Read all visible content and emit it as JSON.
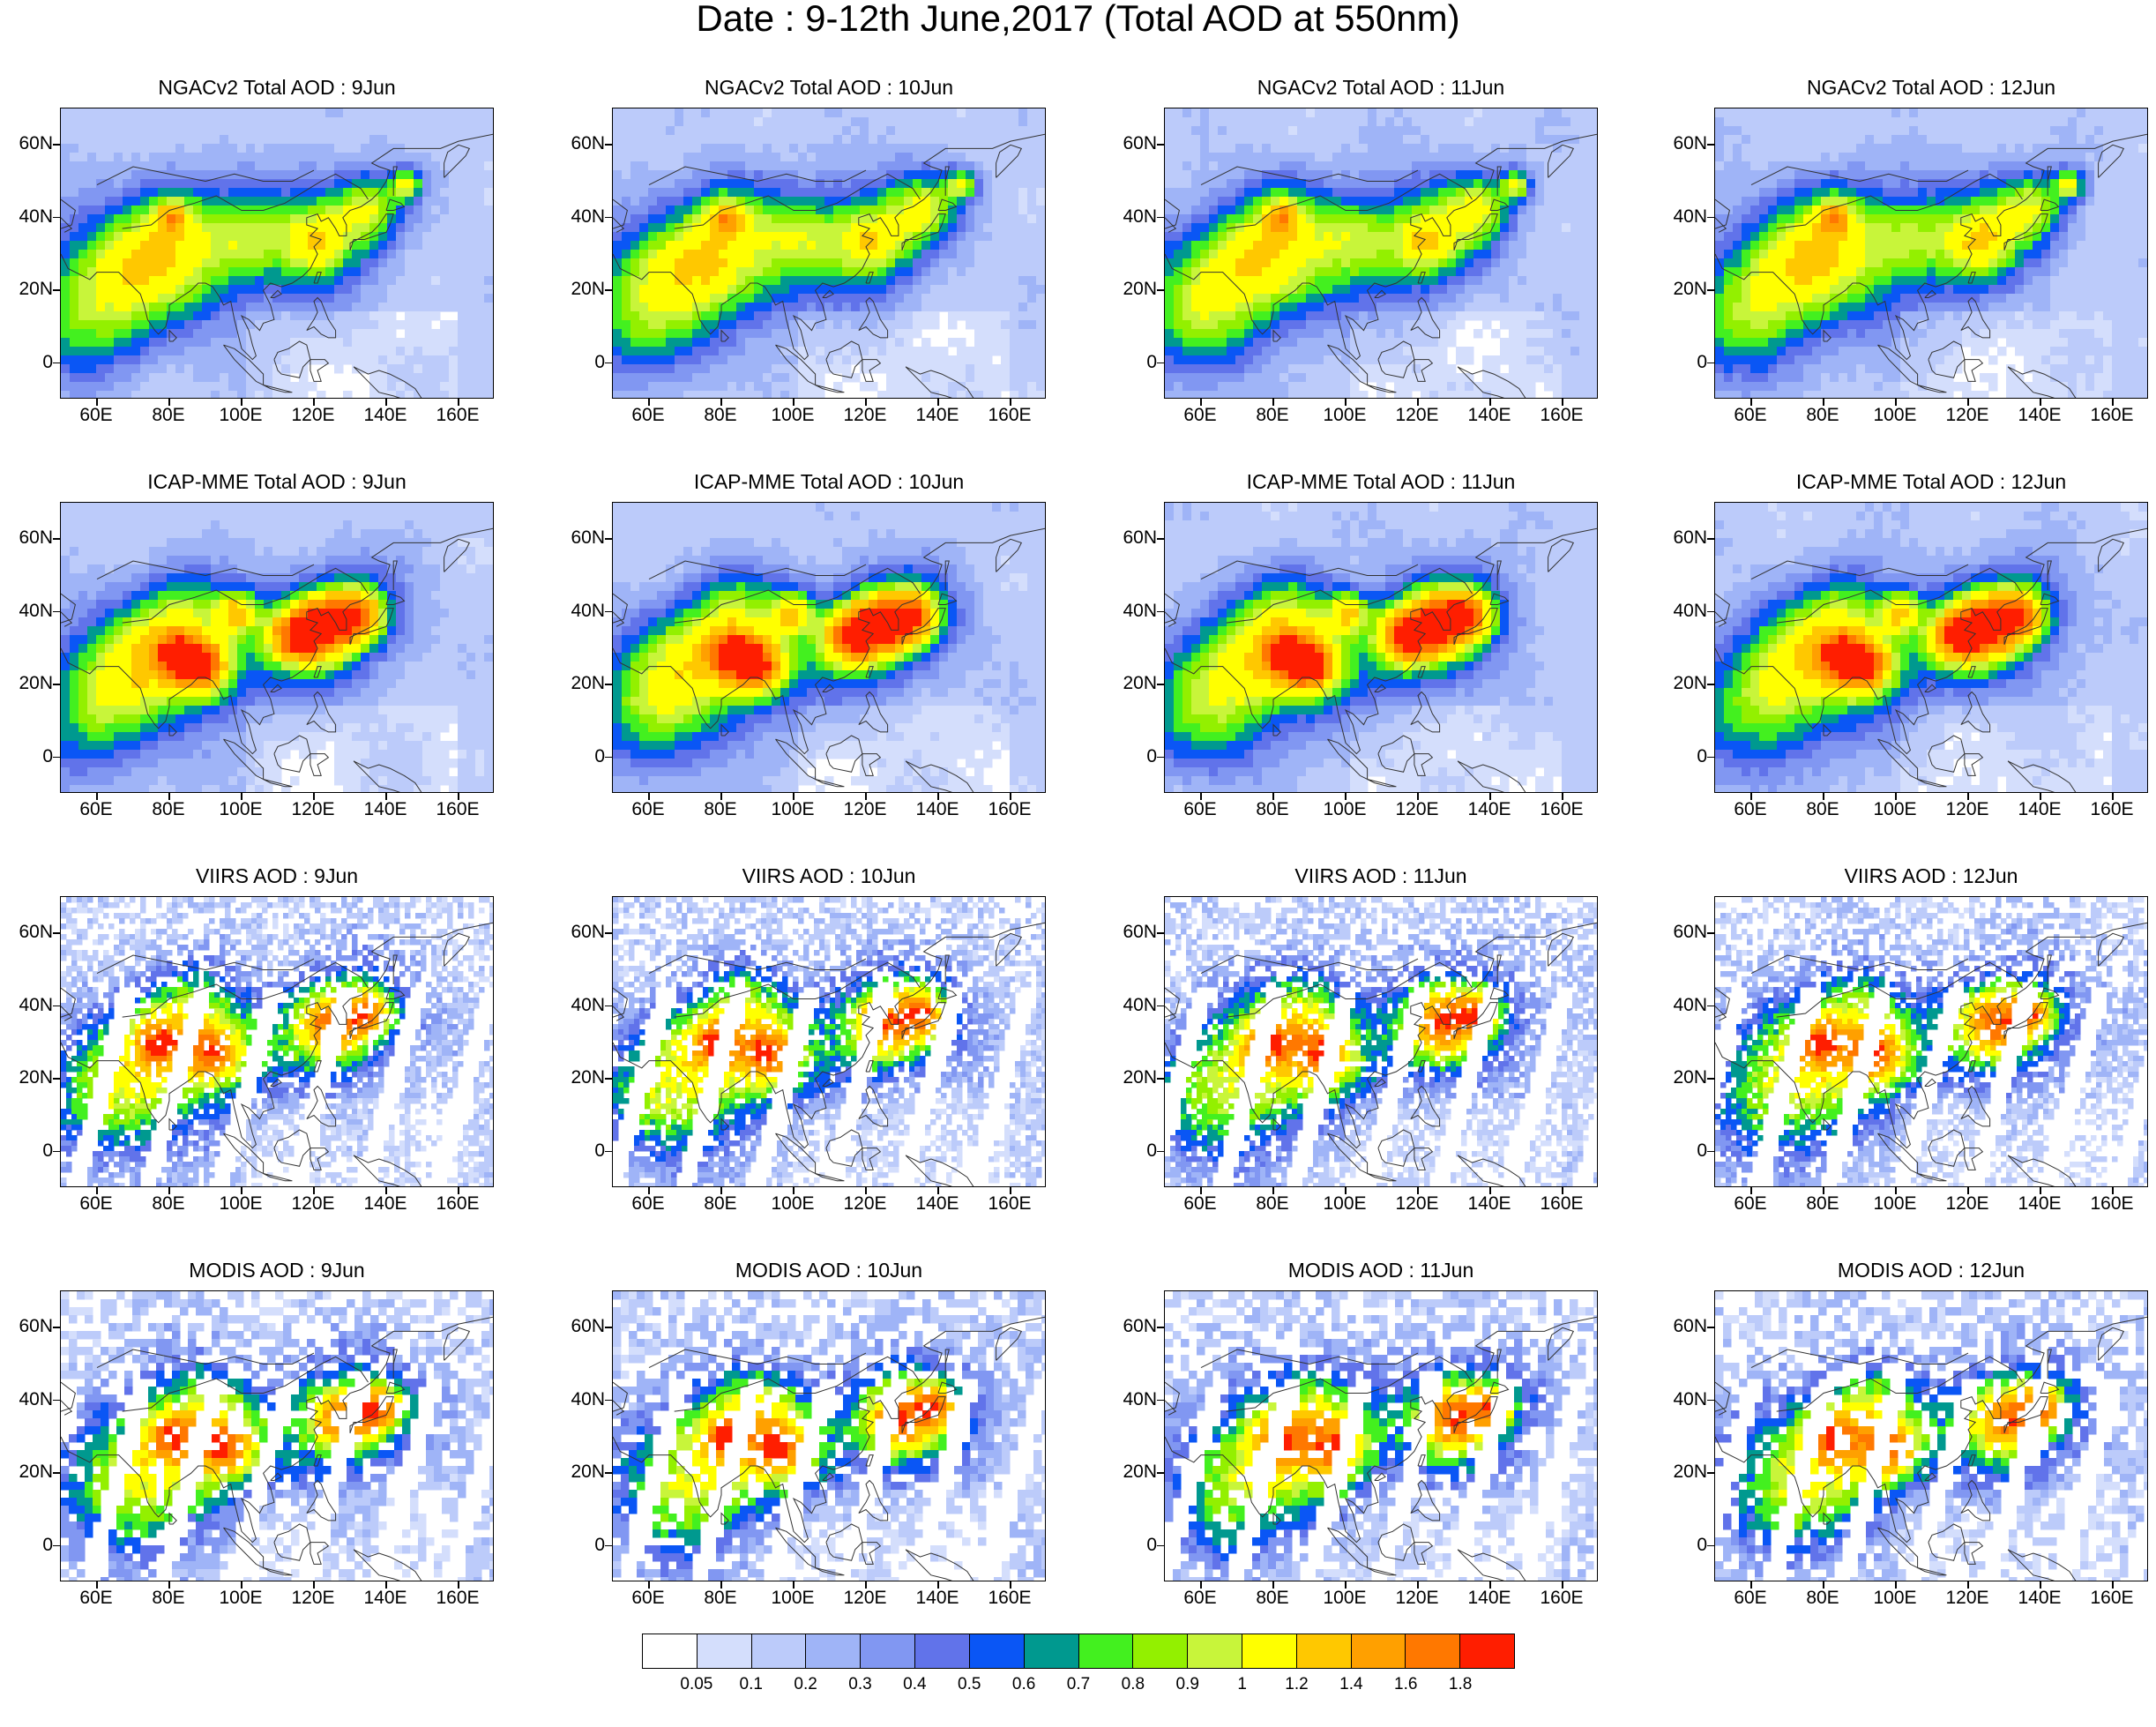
{
  "title": "Date : 9-12th June,2017 (Total AOD at 550nm)",
  "rows": [
    {
      "source": "NGACv2",
      "style": "model",
      "panels": [
        {
          "title": "NGACv2 Total AOD : 9Jun"
        },
        {
          "title": "NGACv2 Total AOD : 10Jun"
        },
        {
          "title": "NGACv2 Total AOD : 11Jun"
        },
        {
          "title": "NGACv2 Total AOD : 12Jun"
        }
      ]
    },
    {
      "source": "ICAP-MME",
      "style": "model-high",
      "panels": [
        {
          "title": "ICAP-MME Total AOD : 9Jun"
        },
        {
          "title": "ICAP-MME Total AOD : 10Jun"
        },
        {
          "title": "ICAP-MME Total AOD : 11Jun"
        },
        {
          "title": "ICAP-MME Total AOD : 12Jun"
        }
      ]
    },
    {
      "source": "VIIRS",
      "style": "satellite",
      "panels": [
        {
          "title": "VIIRS AOD : 9Jun"
        },
        {
          "title": "VIIRS AOD : 10Jun"
        },
        {
          "title": "VIIRS AOD : 11Jun"
        },
        {
          "title": "VIIRS AOD : 12Jun"
        }
      ]
    },
    {
      "source": "MODIS",
      "style": "satellite-coarse",
      "panels": [
        {
          "title": "MODIS AOD : 9Jun"
        },
        {
          "title": "MODIS AOD : 10Jun"
        },
        {
          "title": "MODIS AOD : 11Jun"
        },
        {
          "title": "MODIS AOD : 12Jun"
        }
      ]
    }
  ],
  "map_extent": {
    "lon_min": 50,
    "lon_max": 170,
    "lat_min": -10,
    "lat_max": 70
  },
  "lat_ticks": [
    {
      "value": 60,
      "label": "60N"
    },
    {
      "value": 40,
      "label": "40N"
    },
    {
      "value": 20,
      "label": "20N"
    },
    {
      "value": 0,
      "label": "0"
    }
  ],
  "lon_ticks": [
    {
      "value": 60,
      "label": "60E"
    },
    {
      "value": 80,
      "label": "80E"
    },
    {
      "value": 100,
      "label": "100E"
    },
    {
      "value": 120,
      "label": "120E"
    },
    {
      "value": 140,
      "label": "140E"
    },
    {
      "value": 160,
      "label": "160E"
    }
  ],
  "colorbar": {
    "colors": [
      "#ffffff",
      "#d4defc",
      "#bccbfa",
      "#9fb4f7",
      "#8197f2",
      "#6173ea",
      "#0a56f5",
      "#00998f",
      "#43f01f",
      "#93f000",
      "#c8f53a",
      "#ffff00",
      "#ffc800",
      "#ffa000",
      "#ff7800",
      "#ff1e00"
    ],
    "labels": [
      "0.05",
      "0.1",
      "0.2",
      "0.3",
      "0.4",
      "0.5",
      "0.6",
      "0.7",
      "0.8",
      "0.9",
      "1",
      "1.2",
      "1.4",
      "1.6",
      "1.8"
    ]
  }
}
